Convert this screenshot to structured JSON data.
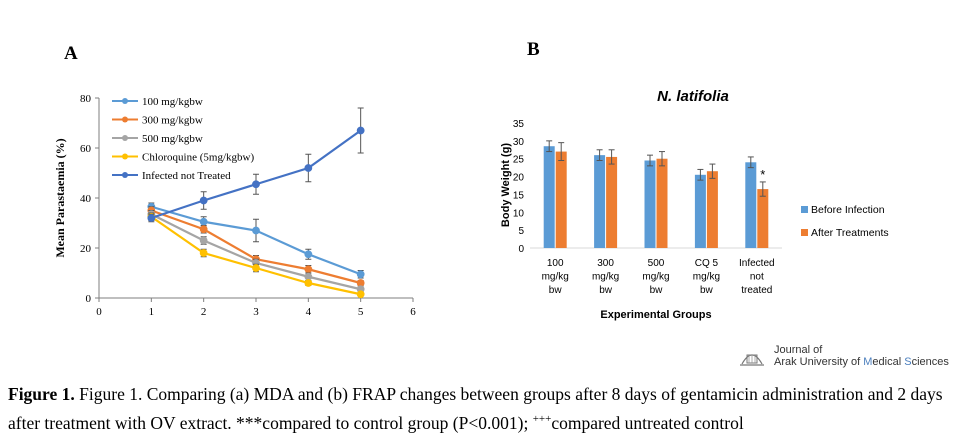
{
  "panel_a_label": "A",
  "panel_b_label": "B",
  "caption": {
    "bold": "Figure 1.",
    "text_1": " Figure 1. Comparing (a) MDA and (b) FRAP changes between groups after 8 days of gentamicin administration and 2 days after treatment with OV extract. ***compared to control group (P<0.001); ",
    "sup": "+++",
    "text_2": "compared untreated control"
  },
  "journal": {
    "line1": "Journal of",
    "line2_plain_a": "Arak University of ",
    "line2_hl_a": "M",
    "line2_plain_b": "edical ",
    "line2_hl_b": "S",
    "line2_plain_c": "ciences"
  },
  "chart_data": [
    {
      "panel": "A",
      "type": "line",
      "title": "",
      "xlabel": "",
      "ylabel": "Mean Parastaemia (%)",
      "xlim": [
        0,
        6
      ],
      "ylim": [
        0,
        80
      ],
      "xticks": [
        0,
        1,
        2,
        3,
        4,
        5,
        6
      ],
      "yticks": [
        0,
        20,
        40,
        60,
        80
      ],
      "grid": false,
      "legend_position": "top-left",
      "x": [
        1,
        2,
        3,
        4,
        5
      ],
      "series": [
        {
          "name": "100 mg/kgbw",
          "color": "#5b9bd5",
          "values": [
            36.5,
            30.5,
            27,
            17.5,
            9.5
          ],
          "errors": [
            1.5,
            2,
            4.5,
            2,
            1.5
          ]
        },
        {
          "name": "300 mg/kgbw",
          "color": "#ed7d31",
          "values": [
            35,
            27.5,
            15.5,
            11.5,
            6
          ],
          "errors": [
            1.5,
            1.5,
            1.5,
            1.5,
            1
          ]
        },
        {
          "name": "500 mg/kgbw",
          "color": "#a5a5a5",
          "values": [
            33.5,
            23,
            14,
            8.5,
            3.5
          ],
          "errors": [
            1.5,
            1.5,
            1.5,
            1.5,
            1
          ]
        },
        {
          "name": "Chloroquine (5mg/kgbw)",
          "color": "#ffc000",
          "values": [
            32.5,
            18,
            12,
            6,
            1.5
          ],
          "errors": [
            1.5,
            1.5,
            1.5,
            1,
            0.5
          ]
        },
        {
          "name": "Infected not Treated",
          "color": "#4472c4",
          "values": [
            32,
            39,
            45.5,
            52,
            67
          ],
          "errors": [
            1.5,
            3.5,
            4,
            5.5,
            9
          ]
        }
      ]
    },
    {
      "panel": "B",
      "type": "bar",
      "title": "N. latifolia",
      "xlabel": "Experimental Groups",
      "ylabel": "Body Weight (g)",
      "ylim": [
        0,
        35
      ],
      "yticks": [
        0,
        5,
        10,
        15,
        20,
        25,
        30,
        35
      ],
      "grid": false,
      "legend_position": "right",
      "categories": [
        [
          "100",
          "mg/kg",
          "bw"
        ],
        [
          "300",
          "mg/kg",
          "bw"
        ],
        [
          "500",
          "mg/kg",
          "bw"
        ],
        [
          "CQ 5",
          "mg/kg",
          "bw"
        ],
        [
          "Infected",
          "not",
          "treated"
        ]
      ],
      "series": [
        {
          "name": "Before Infection",
          "color": "#5b9bd5",
          "values": [
            28.5,
            26,
            24.5,
            20.5,
            24
          ],
          "errors": [
            1.5,
            1.5,
            1.5,
            1.5,
            1.5
          ]
        },
        {
          "name": "After Treatments",
          "color": "#ed7d31",
          "values": [
            27,
            25.5,
            25,
            21.5,
            16.5
          ],
          "errors": [
            2.5,
            2,
            2,
            2,
            2
          ]
        }
      ],
      "annotations": [
        {
          "category_index": 4,
          "series_index": 1,
          "text": "*"
        }
      ]
    }
  ]
}
